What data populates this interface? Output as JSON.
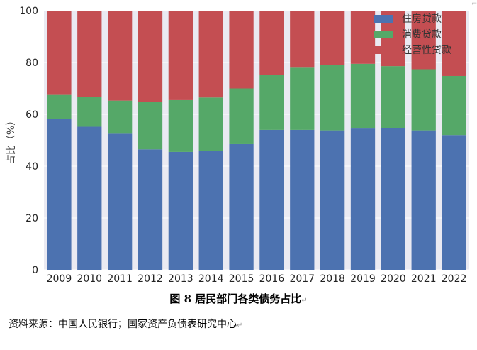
{
  "chart_data": {
    "type": "bar",
    "stacked": true,
    "categories": [
      "2009",
      "2010",
      "2011",
      "2012",
      "2013",
      "2014",
      "2015",
      "2016",
      "2017",
      "2018",
      "2019",
      "2020",
      "2021",
      "2022"
    ],
    "series": [
      {
        "name": "住房贷款",
        "color": "#4C72B0",
        "values": [
          58.3,
          55.2,
          52.5,
          46.5,
          45.5,
          46.0,
          48.5,
          54.0,
          54.0,
          53.8,
          54.5,
          54.6,
          53.8,
          52.0
        ]
      },
      {
        "name": "消费贷款",
        "color": "#55A868",
        "values": [
          9.2,
          11.5,
          12.8,
          18.3,
          20.0,
          20.5,
          21.5,
          21.3,
          24.0,
          25.3,
          25.0,
          24.0,
          23.6,
          22.8
        ]
      },
      {
        "name": "经营性贷款",
        "color": "#C44E52",
        "values": [
          32.5,
          33.3,
          34.7,
          35.2,
          34.5,
          33.5,
          30.0,
          24.7,
          22.0,
          20.9,
          20.5,
          21.4,
          22.6,
          25.2
        ]
      }
    ],
    "ylabel": "占比（%）",
    "xlabel": "",
    "ylim": [
      0,
      100
    ],
    "yticks": [
      0,
      20,
      40,
      60,
      80,
      100
    ],
    "legend_position": "top-right",
    "grid": true
  },
  "caption": "图 8  居民部门各类债务占比",
  "source": "资料来源：中国人民银行；国家资产负债表研究中心",
  "marks": {
    "paragraph": "↵",
    "corner": "⌐"
  },
  "colors": {
    "background": "#EAEAF2",
    "grid": "#ffffff"
  }
}
